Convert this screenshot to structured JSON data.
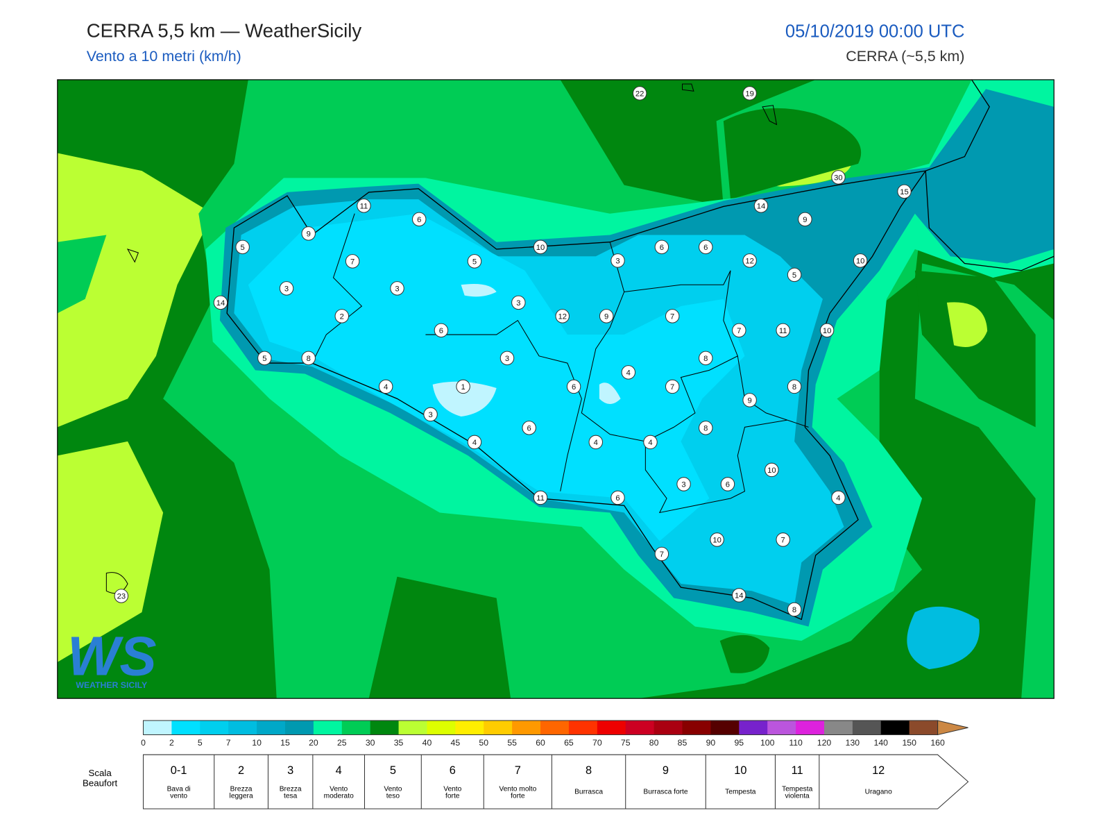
{
  "header": {
    "title": "CERRA 5,5 km — WeatherSicily",
    "subtitle": "Vento a 10 metri (km/h)",
    "date": "05/10/2019 00:00 UTC",
    "model": "CERRA (~5,5 km)"
  },
  "logo": {
    "mark": "WS",
    "text": "WEATHER SICILY"
  },
  "stations": [
    22,
    19,
    30,
    15,
    11,
    6,
    14,
    9,
    9,
    5,
    10,
    3,
    6,
    6,
    7,
    5,
    12,
    5,
    10,
    3,
    3,
    14,
    3,
    12,
    9,
    7,
    2,
    6,
    7,
    11,
    10,
    5,
    8,
    3,
    4,
    8,
    4,
    1,
    6,
    7,
    8,
    9,
    3,
    6,
    8,
    4,
    4,
    4,
    10,
    3,
    6,
    11,
    6,
    4,
    10,
    7,
    7,
    23,
    14,
    8
  ],
  "colorbar": {
    "ticks": [
      0,
      2,
      5,
      7,
      10,
      15,
      20,
      25,
      30,
      35,
      40,
      45,
      50,
      55,
      60,
      65,
      70,
      75,
      80,
      85,
      90,
      95,
      100,
      110,
      120,
      130,
      140,
      150,
      160
    ],
    "colors": [
      "#c0f5ff",
      "#00e0ff",
      "#00cfee",
      "#00bde0",
      "#00a8c8",
      "#0099b0",
      "#00f5a0",
      "#00cc55",
      "#00870f",
      "#bbff33",
      "#ddff00",
      "#ffee00",
      "#ffcc00",
      "#ff9900",
      "#ff6600",
      "#ff3300",
      "#ee0000",
      "#cc0022",
      "#aa0011",
      "#880000",
      "#550000",
      "#7722cc",
      "#bb55dd",
      "#dd22dd",
      "#888888",
      "#555555",
      "#000000",
      "#8b4a2b",
      "#cc8844"
    ]
  },
  "beaufort": {
    "label": "Scala Beaufort",
    "levels": [
      {
        "force": "0-1",
        "name": "Bava di vento"
      },
      {
        "force": "2",
        "name": "Brezza leggera"
      },
      {
        "force": "3",
        "name": "Brezza tesa"
      },
      {
        "force": "4",
        "name": "Vento moderato"
      },
      {
        "force": "5",
        "name": "Vento teso"
      },
      {
        "force": "6",
        "name": "Vento forte"
      },
      {
        "force": "7",
        "name": "Vento molto forte"
      },
      {
        "force": "8",
        "name": "Burrasca"
      },
      {
        "force": "9",
        "name": "Burrasca forte"
      },
      {
        "force": "10",
        "name": "Tempesta"
      },
      {
        "force": "11",
        "name": "Tempesta violenta"
      },
      {
        "force": "12",
        "name": "Uragano"
      }
    ]
  }
}
